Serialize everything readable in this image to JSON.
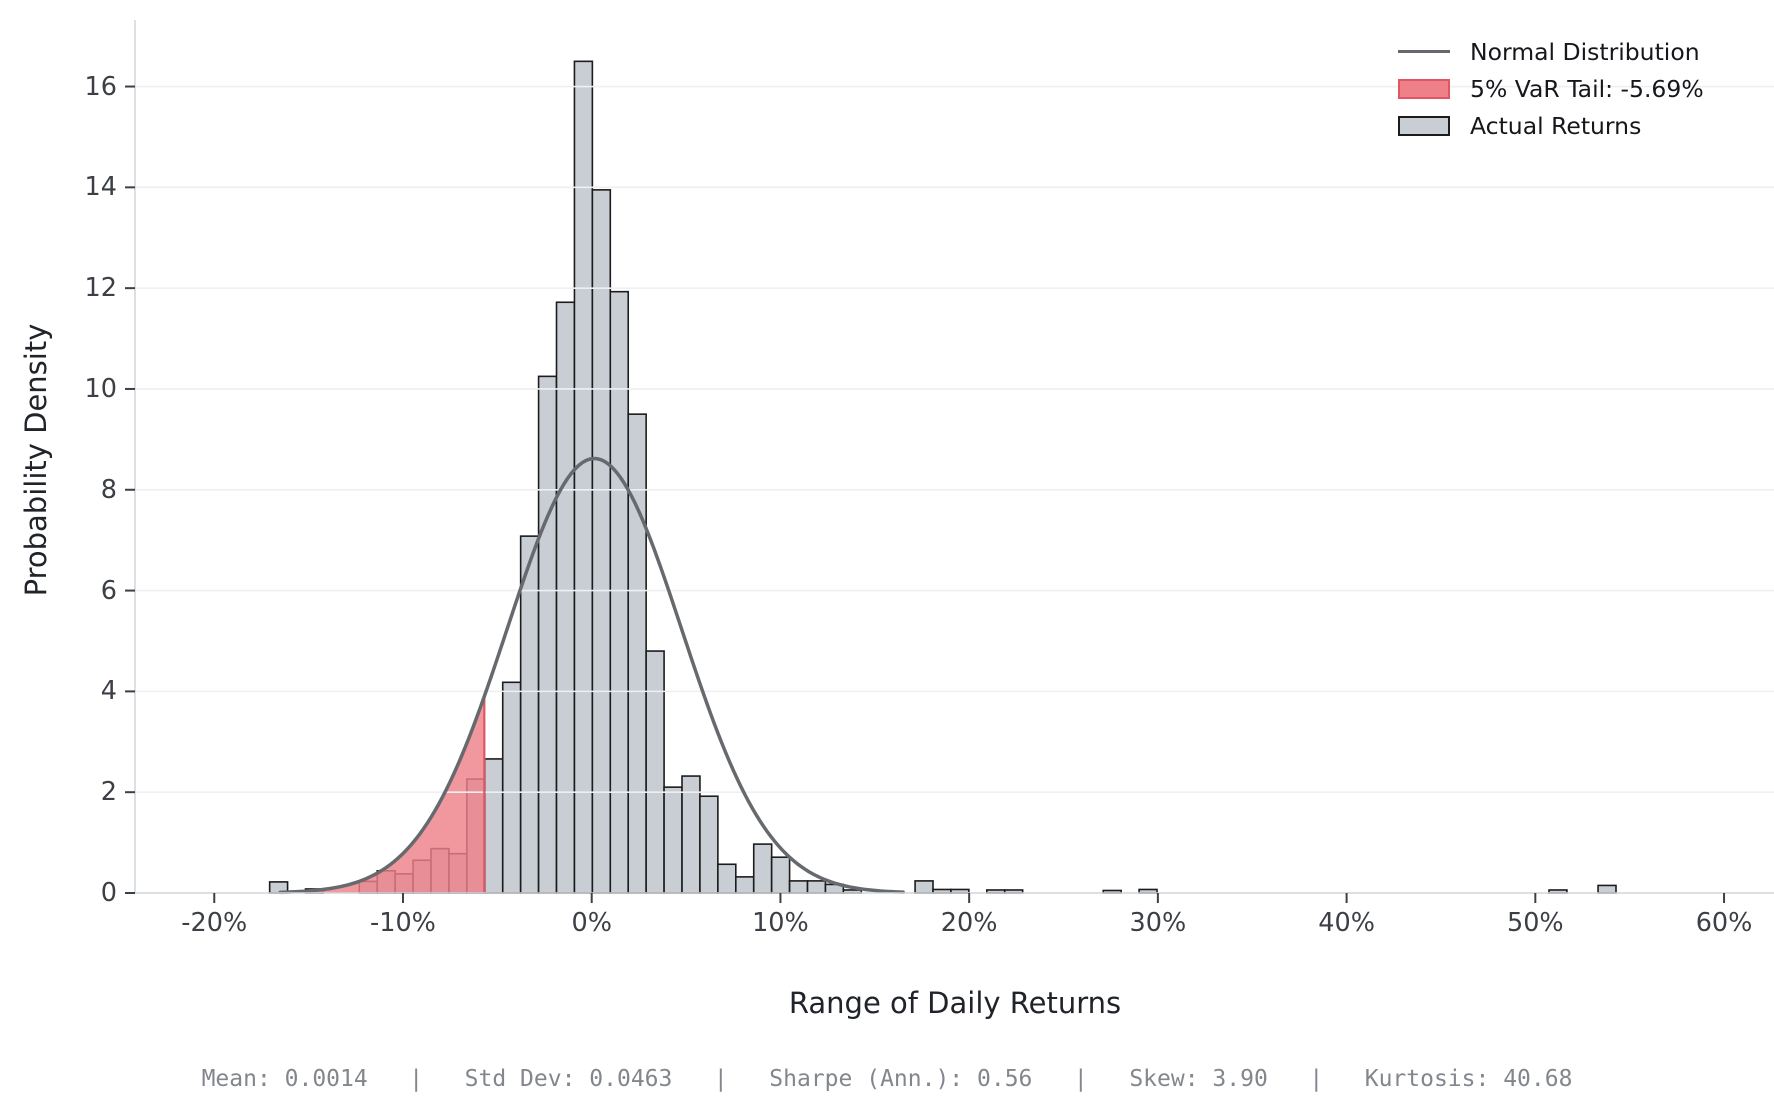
{
  "chart_data": {
    "type": "histogram",
    "title": "",
    "xlabel": "Range of Daily Returns",
    "ylabel": "Probability Density",
    "x_ticks": [
      {
        "value": -20,
        "label": "-20%"
      },
      {
        "value": -10,
        "label": "-10%"
      },
      {
        "value": 0,
        "label": "0%"
      },
      {
        "value": 10,
        "label": "10%"
      },
      {
        "value": 20,
        "label": "20%"
      },
      {
        "value": 30,
        "label": "30%"
      },
      {
        "value": 40,
        "label": "40%"
      },
      {
        "value": 50,
        "label": "50%"
      },
      {
        "value": 60,
        "label": "60%"
      }
    ],
    "y_ticks": [
      {
        "value": 0,
        "label": "0"
      },
      {
        "value": 2,
        "label": "2"
      },
      {
        "value": 4,
        "label": "4"
      },
      {
        "value": 6,
        "label": "6"
      },
      {
        "value": 8,
        "label": "8"
      },
      {
        "value": 10,
        "label": "10"
      },
      {
        "value": 12,
        "label": "12"
      },
      {
        "value": 14,
        "label": "14"
      },
      {
        "value": 16,
        "label": "16"
      }
    ],
    "xlim": [
      -24.2,
      62.7
    ],
    "ylim": [
      0,
      17.32
    ],
    "grid": "horizontal-only",
    "bars": {
      "bin_width_pct": 0.95,
      "centers_pct": [
        -16.59,
        -14.69,
        -11.84,
        -10.89,
        -9.94,
        -8.99,
        -8.04,
        -7.09,
        -6.14,
        -5.19,
        -4.24,
        -3.29,
        -2.34,
        -1.39,
        -0.44,
        0.51,
        1.46,
        2.41,
        3.36,
        4.31,
        5.26,
        6.21,
        7.16,
        8.11,
        9.06,
        10.01,
        10.96,
        11.91,
        12.86,
        13.81,
        17.61,
        18.56,
        19.51,
        21.41,
        22.36,
        27.58,
        29.48,
        51.2,
        53.8
      ],
      "heights": [
        0.22,
        0.08,
        0.23,
        0.44,
        0.38,
        0.65,
        0.88,
        0.78,
        2.26,
        2.66,
        4.18,
        7.08,
        10.25,
        11.72,
        16.5,
        13.95,
        11.93,
        9.5,
        4.8,
        2.1,
        2.32,
        1.92,
        0.57,
        0.32,
        0.97,
        0.71,
        0.24,
        0.24,
        0.17,
        0.06,
        0.24,
        0.07,
        0.07,
        0.06,
        0.06,
        0.05,
        0.07,
        0.06,
        0.15
      ]
    },
    "normal_curve": {
      "mean_pct": 0.14,
      "std_pct": 4.63,
      "peak_density": 8.62,
      "draw_range_pct": [
        -16.5,
        16.5
      ]
    },
    "var_tail": {
      "threshold_pct": -5.69,
      "fill_from_pct": -20
    },
    "legend": [
      {
        "type": "line",
        "label": "Normal Distribution"
      },
      {
        "type": "patch",
        "label": "5% VaR Tail: -5.69%",
        "fill": "#ee8089",
        "border": "#e05562"
      },
      {
        "type": "patch",
        "label": "Actual Returns",
        "fill": "#c9ced4",
        "border": "#1c1c1c"
      }
    ],
    "footer_stats": {
      "mean": "0.0014",
      "std_dev": "0.0463",
      "sharpe_ann": "0.56",
      "skew": "3.90",
      "kurtosis": "40.68"
    },
    "footer_text": "Mean: 0.0014   |   Std Dev: 0.0463   |   Sharpe (Ann.): 0.56   |   Skew: 3.90   |   Kurtosis: 40.68"
  },
  "colors": {
    "background": "#ffffff",
    "bar_fill": "#c9ced4",
    "bar_edge": "#1c1c1c",
    "curve": "#66696e",
    "var_fill": "#ee8089",
    "var_fill_opacity": 0.82,
    "var_edge": "#e05562",
    "grid": "#efeff2",
    "spine": "#d2d5d9",
    "tick_mark": "#3c4046",
    "tick_label": "#3c4046",
    "axis_label": "#202329",
    "legend_text": "#15171a",
    "footer_text": "#83878d"
  }
}
